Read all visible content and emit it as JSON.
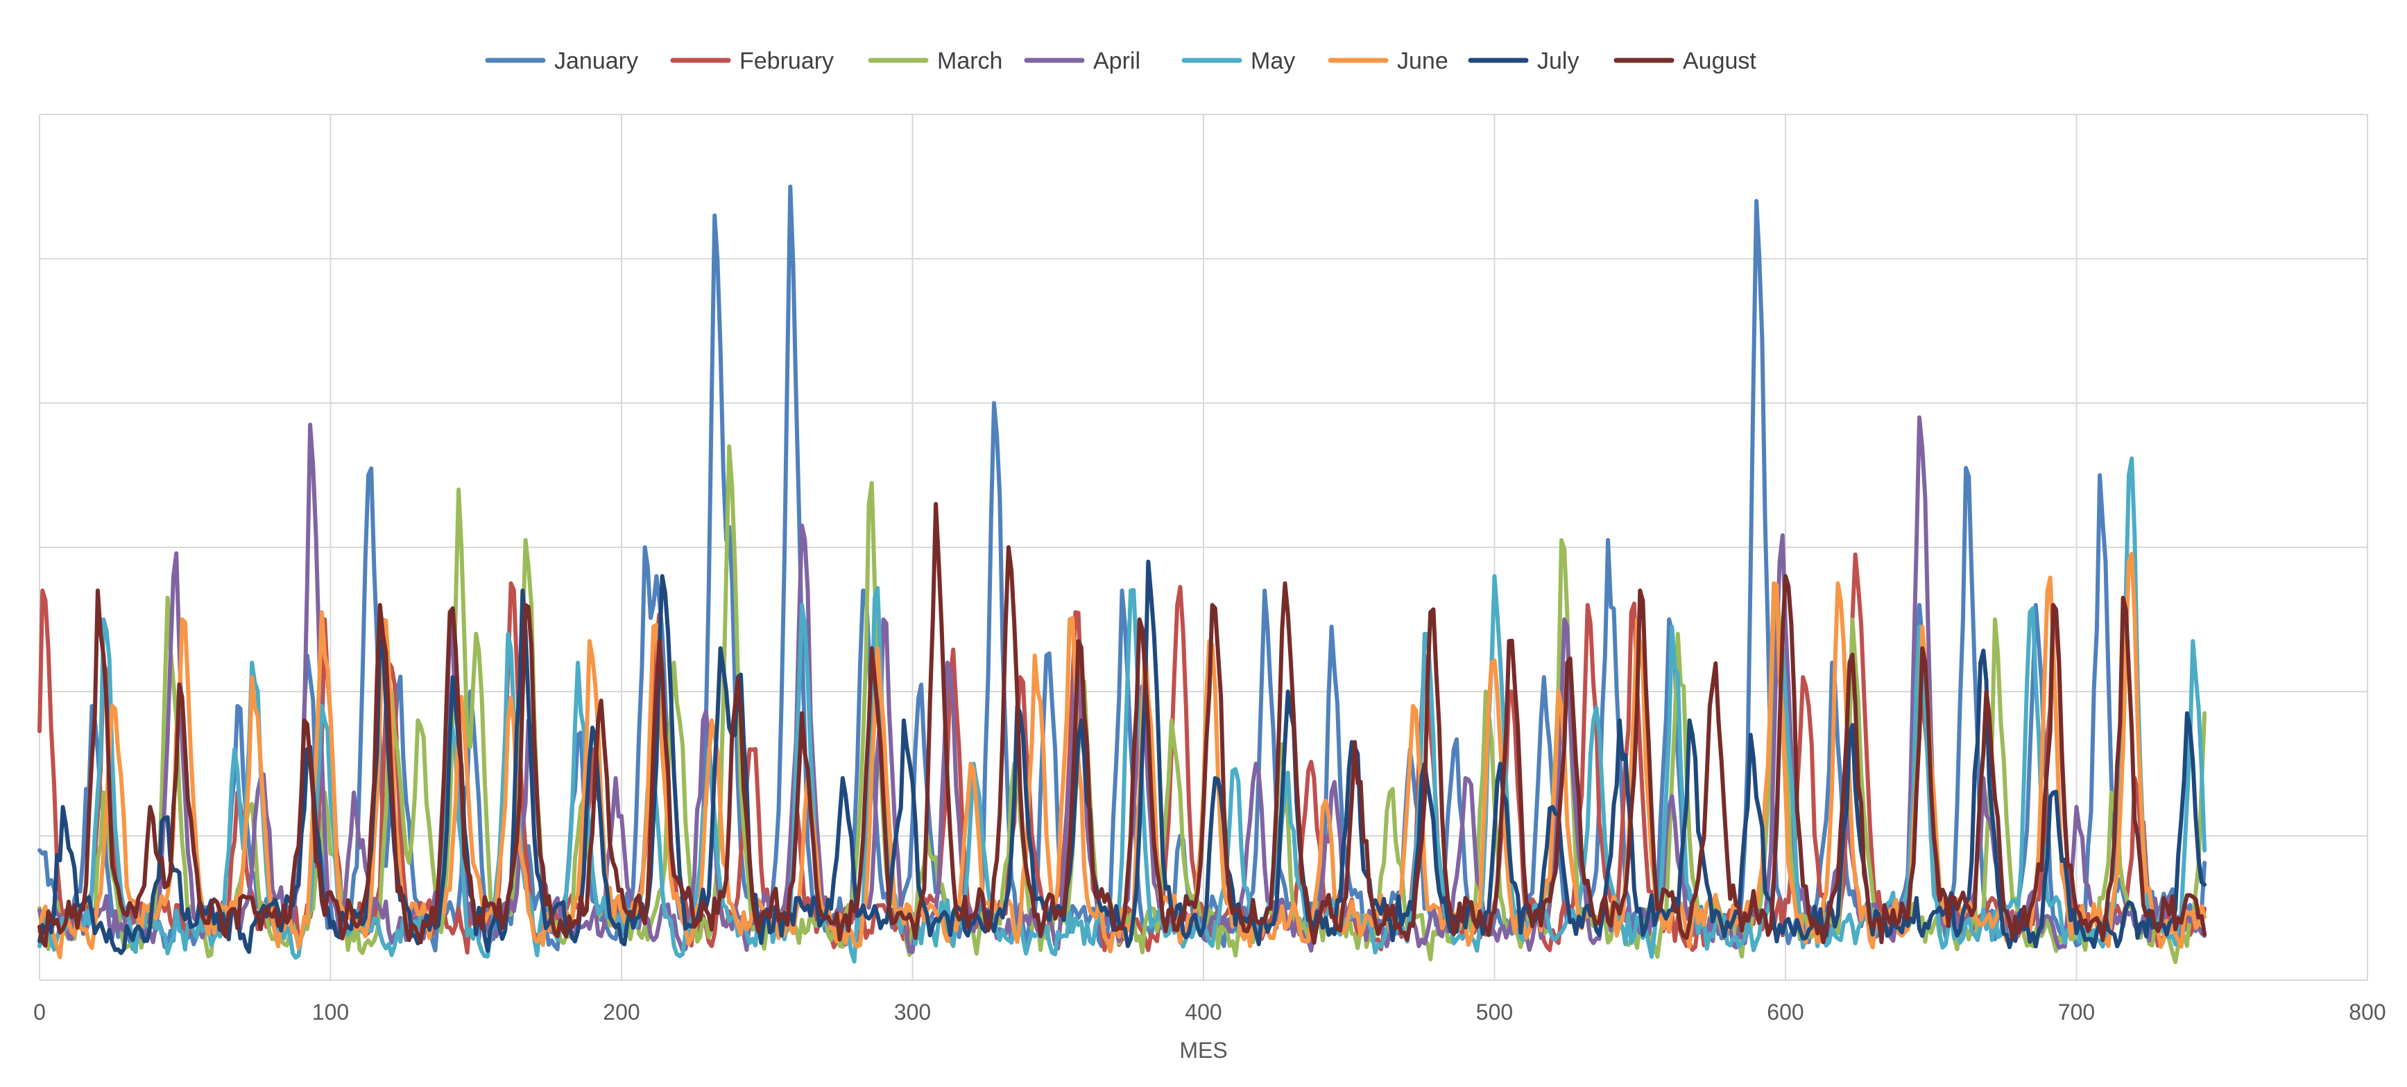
{
  "chart_data": {
    "type": "line",
    "title": "",
    "xlabel": "MES",
    "ylabel": "",
    "xlim": [
      0,
      800
    ],
    "ylim": [
      0,
      6
    ],
    "x_ticks": [
      0,
      100,
      200,
      300,
      400,
      500,
      600,
      700,
      800
    ],
    "x_tick_labels": [
      "0",
      "100",
      "200",
      "300",
      "400",
      "500",
      "600",
      "700",
      "800"
    ],
    "y_gridlines": [
      0,
      1,
      2,
      3,
      4,
      5,
      6
    ],
    "grid": true,
    "legend_position": "top",
    "points_per_series": 744,
    "series": [
      {
        "name": "January",
        "color": "#4F81BD",
        "peaks": [
          [
            0,
            0.9
          ],
          [
            18,
            1.9
          ],
          [
            27,
            0.3
          ],
          [
            68,
            1.9
          ],
          [
            92,
            2.25
          ],
          [
            113,
            3.5
          ],
          [
            123,
            2.0
          ],
          [
            148,
            2.0
          ],
          [
            166,
            1.0
          ],
          [
            185,
            1.7
          ],
          [
            208,
            3.0
          ],
          [
            212,
            2.8
          ],
          [
            232,
            5.3
          ],
          [
            236,
            3.05
          ],
          [
            258,
            5.5
          ],
          [
            283,
            2.7
          ],
          [
            302,
            1.95
          ],
          [
            328,
            4.0
          ],
          [
            346,
            2.25
          ],
          [
            372,
            2.7
          ],
          [
            392,
            1.0
          ],
          [
            421,
            2.7
          ],
          [
            444,
            2.45
          ],
          [
            471,
            1.6
          ],
          [
            486,
            1.6
          ],
          [
            517,
            2.1
          ],
          [
            539,
            3.05
          ],
          [
            560,
            2.5
          ],
          [
            590,
            5.4
          ],
          [
            616,
            2.2
          ],
          [
            646,
            2.6
          ],
          [
            662,
            3.55
          ],
          [
            686,
            2.6
          ],
          [
            708,
            3.5
          ],
          [
            720,
            1.3
          ],
          [
            745,
            0.85
          ]
        ],
        "baseline": 0.4
      },
      {
        "name": "February",
        "color": "#C0504D",
        "peaks": [
          [
            1,
            2.7
          ],
          [
            22,
            2.2
          ],
          [
            68,
            1.3
          ],
          [
            98,
            2.5
          ],
          [
            120,
            2.2
          ],
          [
            162,
            2.75
          ],
          [
            190,
            1.6
          ],
          [
            212,
            2.35
          ],
          [
            244,
            1.6
          ],
          [
            259,
            1.2
          ],
          [
            313,
            2.1
          ],
          [
            337,
            2.1
          ],
          [
            356,
            2.55
          ],
          [
            391,
            2.6
          ],
          [
            436,
            1.45
          ],
          [
            476,
            2.25
          ],
          [
            505,
            2.0
          ],
          [
            532,
            2.6
          ],
          [
            547,
            2.55
          ],
          [
            606,
            2.1
          ],
          [
            624,
            2.95
          ],
          [
            646,
            2.2
          ],
          [
            692,
            2.6
          ],
          [
            720,
            1.4
          ],
          [
            745,
            0.4
          ]
        ],
        "baseline": 0.4
      },
      {
        "name": "March",
        "color": "#9BBB59",
        "peaks": [
          [
            22,
            1.3
          ],
          [
            44,
            2.65
          ],
          [
            72,
            1.2
          ],
          [
            98,
            1.3
          ],
          [
            121,
            2.0
          ],
          [
            130,
            1.8
          ],
          [
            144,
            3.4
          ],
          [
            150,
            2.4
          ],
          [
            167,
            3.05
          ],
          [
            186,
            1.2
          ],
          [
            218,
            2.2
          ],
          [
            237,
            3.7
          ],
          [
            252,
            0.4
          ],
          [
            285,
            3.3
          ],
          [
            305,
            1.0
          ],
          [
            335,
            1.5
          ],
          [
            358,
            2.0
          ],
          [
            389,
            1.8
          ],
          [
            426,
            1.5
          ],
          [
            464,
            1.3
          ],
          [
            497,
            2.0
          ],
          [
            523,
            3.05
          ],
          [
            563,
            2.4
          ],
          [
            597,
            2.7
          ],
          [
            623,
            2.5
          ],
          [
            672,
            2.5
          ],
          [
            712,
            1.3
          ],
          [
            745,
            2.25
          ]
        ],
        "baseline": 0.35
      },
      {
        "name": "April",
        "color": "#8064A2",
        "peaks": [
          [
            46,
            2.8
          ],
          [
            76,
            1.4
          ],
          [
            93,
            3.85
          ],
          [
            108,
            1.3
          ],
          [
            141,
            2.5
          ],
          [
            168,
            1.8
          ],
          [
            198,
            1.4
          ],
          [
            228,
            1.8
          ],
          [
            262,
            3.15
          ],
          [
            290,
            2.5
          ],
          [
            312,
            2.2
          ],
          [
            356,
            2.3
          ],
          [
            378,
            1.9
          ],
          [
            418,
            1.5
          ],
          [
            444,
            1.3
          ],
          [
            490,
            1.4
          ],
          [
            524,
            2.5
          ],
          [
            560,
            1.2
          ],
          [
            598,
            2.9
          ],
          [
            620,
            1.3
          ],
          [
            646,
            3.9
          ],
          [
            668,
            1.4
          ],
          [
            700,
            1.2
          ],
          [
            745,
            0.5
          ]
        ],
        "baseline": 0.4
      },
      {
        "name": "May",
        "color": "#4BACC6",
        "peaks": [
          [
            22,
            2.5
          ],
          [
            67,
            1.6
          ],
          [
            73,
            2.2
          ],
          [
            97,
            1.9
          ],
          [
            141,
            1.8
          ],
          [
            161,
            2.4
          ],
          [
            185,
            2.2
          ],
          [
            210,
            1.5
          ],
          [
            230,
            1.6
          ],
          [
            262,
            2.6
          ],
          [
            287,
            2.65
          ],
          [
            321,
            1.5
          ],
          [
            375,
            2.7
          ],
          [
            410,
            1.45
          ],
          [
            428,
            1.3
          ],
          [
            476,
            2.4
          ],
          [
            500,
            2.8
          ],
          [
            534,
            1.8
          ],
          [
            561,
            2.45
          ],
          [
            599,
            2.3
          ],
          [
            646,
            2.45
          ],
          [
            684,
            2.55
          ],
          [
            718,
            3.5
          ],
          [
            740,
            2.35
          ]
        ],
        "baseline": 0.35
      },
      {
        "name": "June",
        "color": "#F79646",
        "peaks": [
          [
            25,
            1.9
          ],
          [
            49,
            2.5
          ],
          [
            73,
            2.1
          ],
          [
            97,
            2.55
          ],
          [
            118,
            2.5
          ],
          [
            144,
            1.8
          ],
          [
            161,
            1.8
          ],
          [
            189,
            2.35
          ],
          [
            211,
            2.45
          ],
          [
            231,
            1.8
          ],
          [
            264,
            1.4
          ],
          [
            288,
            2.3
          ],
          [
            320,
            1.5
          ],
          [
            342,
            2.25
          ],
          [
            354,
            2.5
          ],
          [
            380,
            2.3
          ],
          [
            402,
            2.35
          ],
          [
            441,
            1.2
          ],
          [
            472,
            1.9
          ],
          [
            499,
            2.2
          ],
          [
            522,
            2.0
          ],
          [
            549,
            2.5
          ],
          [
            596,
            2.75
          ],
          [
            618,
            2.75
          ],
          [
            647,
            2.45
          ],
          [
            690,
            2.7
          ],
          [
            718,
            2.9
          ],
          [
            745,
            0.5
          ]
        ],
        "baseline": 0.4
      },
      {
        "name": "July",
        "color": "#1F497D",
        "peaks": [
          [
            8,
            1.2
          ],
          [
            42,
            1.1
          ],
          [
            92,
            1.6
          ],
          [
            117,
            2.4
          ],
          [
            142,
            2.1
          ],
          [
            166,
            2.7
          ],
          [
            190,
            1.75
          ],
          [
            214,
            2.8
          ],
          [
            234,
            2.3
          ],
          [
            240,
            2.1
          ],
          [
            276,
            1.4
          ],
          [
            297,
            1.8
          ],
          [
            336,
            1.9
          ],
          [
            358,
            1.8
          ],
          [
            381,
            2.9
          ],
          [
            404,
            1.4
          ],
          [
            429,
            2.0
          ],
          [
            451,
            1.65
          ],
          [
            476,
            1.5
          ],
          [
            502,
            1.5
          ],
          [
            520,
            1.2
          ],
          [
            543,
            1.8
          ],
          [
            567,
            1.8
          ],
          [
            588,
            1.7
          ],
          [
            622,
            1.7
          ],
          [
            667,
            2.2
          ],
          [
            692,
            1.3
          ],
          [
            738,
            1.85
          ],
          [
            745,
            0.9
          ]
        ],
        "baseline": 0.4
      },
      {
        "name": "August",
        "color": "#772C2A",
        "peaks": [
          [
            20,
            2.7
          ],
          [
            38,
            1.2
          ],
          [
            48,
            2.05
          ],
          [
            91,
            1.8
          ],
          [
            117,
            2.6
          ],
          [
            141,
            2.55
          ],
          [
            167,
            2.6
          ],
          [
            192,
            1.8
          ],
          [
            213,
            2.35
          ],
          [
            239,
            1.9
          ],
          [
            262,
            1.85
          ],
          [
            286,
            2.3
          ],
          [
            308,
            3.3
          ],
          [
            333,
            3.0
          ],
          [
            357,
            2.35
          ],
          [
            378,
            2.5
          ],
          [
            403,
            2.6
          ],
          [
            428,
            2.75
          ],
          [
            452,
            1.65
          ],
          [
            478,
            2.55
          ],
          [
            505,
            2.35
          ],
          [
            525,
            2.2
          ],
          [
            550,
            2.7
          ],
          [
            575,
            2.05
          ],
          [
            600,
            2.8
          ],
          [
            622,
            2.2
          ],
          [
            647,
            2.3
          ],
          [
            669,
            2.0
          ],
          [
            692,
            2.6
          ],
          [
            716,
            2.65
          ],
          [
            745,
            0.4
          ]
        ],
        "baseline": 0.45
      }
    ]
  }
}
